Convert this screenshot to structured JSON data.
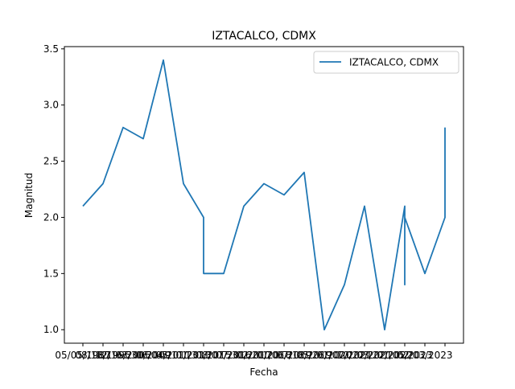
{
  "chart_data": {
    "type": "line",
    "title": "IZTACALCO, CDMX",
    "xlabel": "Fecha",
    "ylabel": "Magnitud",
    "ylim": [
      0.88,
      3.52
    ],
    "yticks": [
      1.0,
      1.5,
      2.0,
      2.5,
      3.0,
      3.5
    ],
    "ytick_labels": [
      "1.0",
      "1.5",
      "2.0",
      "2.5",
      "3.0",
      "3.5"
    ],
    "x_tick_labels": [
      "05/05/1987",
      "08/18/1995",
      "12/16/2005",
      "03/30/2009",
      "06/04/2011",
      "05/11/2013",
      "01/31/2015",
      "08/07/2016",
      "07/30/2017",
      "02/20/2018",
      "01/06/2019",
      "07/18/2019",
      "05/26/2020",
      "01/07/2021",
      "10/22/2021",
      "03/22/2022",
      "01/05/2023",
      "02/03/2023"
    ],
    "grid": false,
    "legend_position": "top-right",
    "series": [
      {
        "name": "IZTACALCO, CDMX",
        "color": "#1f77b4",
        "points": [
          [
            0,
            2.1
          ],
          [
            1,
            2.3
          ],
          [
            2,
            2.8
          ],
          [
            3,
            2.7
          ],
          [
            4,
            3.4
          ],
          [
            5,
            2.3
          ],
          [
            6,
            2.0
          ],
          [
            6,
            1.5
          ],
          [
            7,
            1.5
          ],
          [
            8,
            2.1
          ],
          [
            9,
            2.3
          ],
          [
            10,
            2.2
          ],
          [
            11,
            2.4
          ],
          [
            12,
            1.0
          ],
          [
            13,
            1.4
          ],
          [
            14,
            2.1
          ],
          [
            15,
            1.0
          ],
          [
            16,
            2.1
          ],
          [
            16,
            1.4
          ],
          [
            16,
            2.0
          ],
          [
            17,
            1.5
          ],
          [
            18,
            2.0
          ],
          [
            18,
            2.8
          ]
        ]
      }
    ]
  }
}
